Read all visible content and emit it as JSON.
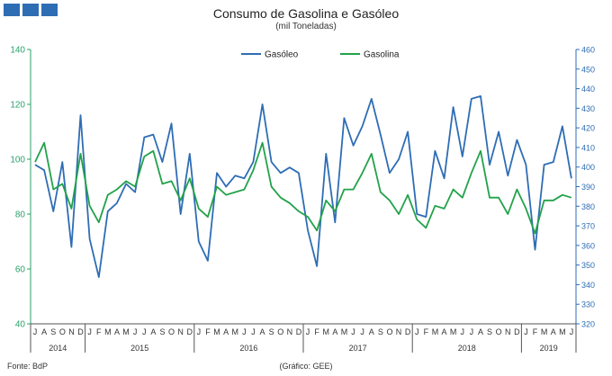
{
  "header": {
    "title": "Consumo de Gasolina e Gasóleo",
    "subtitle": "(mil Toneladas)"
  },
  "footer": {
    "source": "Fonte: BdP",
    "credit": "(Gráfico: GEE)"
  },
  "colors": {
    "gasoleo": "#2e6db4",
    "gasolina": "#22a24a",
    "axis_left": "#2aa26a",
    "axis_right": "#2e6db4",
    "logo": "#2e6db4"
  },
  "chart_data": {
    "type": "line",
    "title": "Consumo de Gasolina e Gasóleo",
    "subtitle": "(mil Toneladas)",
    "legend_position": "top-center",
    "left_axis": {
      "min": 40,
      "max": 140,
      "ticks": [
        "40",
        "60",
        "80",
        "100",
        "120",
        "140"
      ]
    },
    "right_axis": {
      "min": 320,
      "max": 460,
      "ticks": [
        "320",
        "330",
        "340",
        "350",
        "360",
        "370",
        "380",
        "390",
        "400",
        "410",
        "420",
        "430",
        "440",
        "450",
        "460"
      ]
    },
    "month_labels": [
      "J",
      "A",
      "S",
      "O",
      "N",
      "D",
      "J",
      "F",
      "M",
      "A",
      "M",
      "J",
      "J",
      "A",
      "S",
      "O",
      "N",
      "D",
      "J",
      "F",
      "M",
      "A",
      "M",
      "J",
      "J",
      "A",
      "S",
      "O",
      "N",
      "D",
      "J",
      "F",
      "M",
      "A",
      "M",
      "J",
      "J",
      "A",
      "S",
      "O",
      "N",
      "D",
      "J",
      "F",
      "M",
      "A",
      "M",
      "J",
      "J",
      "A",
      "S",
      "O",
      "N",
      "D",
      "J",
      "F",
      "M",
      "A",
      "M",
      "J"
    ],
    "years": [
      {
        "label": "2014",
        "start": 0,
        "end": 6
      },
      {
        "label": "2015",
        "start": 6,
        "end": 18
      },
      {
        "label": "2016",
        "start": 18,
        "end": 30
      },
      {
        "label": "2017",
        "start": 30,
        "end": 42
      },
      {
        "label": "2018",
        "start": 42,
        "end": 54
      },
      {
        "label": "2019",
        "start": 54,
        "end": 60
      }
    ],
    "series": [
      {
        "name": "Gasóleo",
        "axis": "left",
        "values": [
          98,
          96,
          81,
          99,
          68,
          116,
          71,
          57,
          81,
          84,
          91,
          88,
          108,
          109,
          99,
          113,
          80,
          102,
          70,
          63,
          95,
          90,
          94,
          93,
          99,
          120,
          99,
          95,
          97,
          95,
          74,
          61,
          102,
          77,
          115,
          105,
          112,
          122,
          109,
          95,
          100,
          110,
          80,
          79,
          103,
          93,
          119,
          101,
          122,
          123,
          98,
          110,
          94,
          107,
          98,
          67,
          98,
          99,
          112,
          93
        ]
      },
      {
        "name": "Gasolina",
        "axis": "left",
        "values": [
          99,
          106,
          89,
          91,
          82,
          102,
          83,
          77,
          87,
          89,
          92,
          90,
          101,
          103,
          91,
          92,
          85,
          93,
          82,
          79,
          90,
          87,
          88,
          89,
          96,
          106,
          90,
          86,
          84,
          81,
          79,
          74,
          85,
          81,
          89,
          89,
          95,
          102,
          88,
          85,
          80,
          87,
          78,
          75,
          83,
          82,
          89,
          86,
          95,
          103,
          86,
          86,
          80,
          89,
          82,
          73,
          85,
          85,
          87,
          86
        ]
      }
    ]
  }
}
